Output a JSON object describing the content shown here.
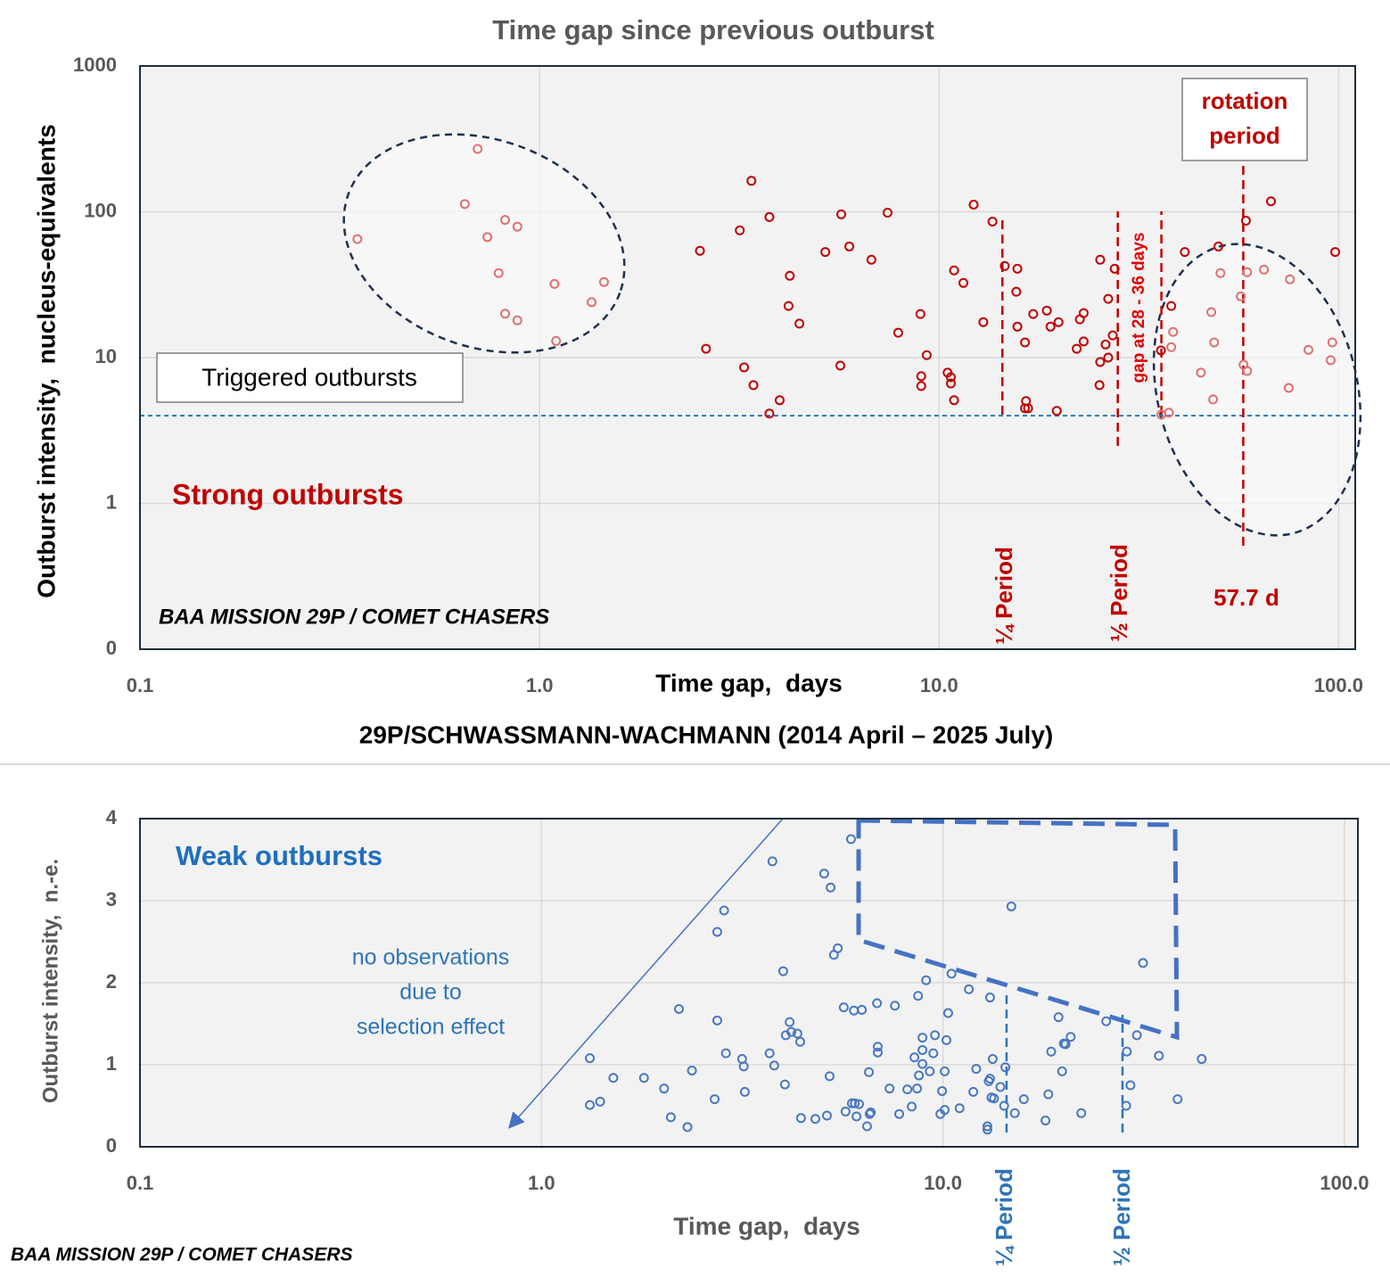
{
  "chart_data": [
    {
      "type": "scatter",
      "title": "Time gap since previous outburst",
      "xlabel": "Time gap,  days",
      "ylabel": "Outburst intensity,  nucleus-equivalents",
      "subtitle": "29P/SCHWASSMANN-WACHMANN (2014 April – 2025 July)",
      "annotations": [
        "Triggered outbursts",
        "Strong outbursts",
        "BAA MISSION 29P / COMET CHASERS",
        "rotation",
        "period",
        "57.7 d",
        "¼ Period",
        "½ Period",
        "gap at 28 - 36 days"
      ],
      "xscale": "log",
      "yscale": "log",
      "xlim": [
        0.1,
        110
      ],
      "ylim": [
        0.1,
        1000
      ],
      "xticks": [
        0.1,
        {
          "value": 1,
          "label": "1.0"
        },
        {
          "value": 10,
          "label": "10.0"
        },
        {
          "value": 100,
          "label": "100.0"
        }
      ],
      "yticks": [
        {
          "value": 0.1,
          "label": "0"
        },
        1,
        10,
        100,
        1000
      ],
      "grid": true,
      "hline": 4,
      "hline_color": "#2e75b6",
      "vlines": [
        14.4,
        28,
        36,
        57.7
      ],
      "vline_color": "#c00000",
      "series": [
        {
          "color": "#e07070",
          "x": [
            0.35,
            0.65,
            0.7,
            0.74,
            0.79,
            0.82,
            0.82,
            0.88,
            0.88,
            1.09,
            1.1,
            1.35,
            1.45,
            36.0,
            37.6,
            38.1,
            38.5,
            45.2,
            48.0,
            48.5,
            48.8,
            50.6,
            56.9,
            57.8,
            59.0,
            59.0,
            65.0,
            75.5,
            75.0,
            84,
            95.5,
            96.4
          ],
          "values": [
            65,
            113,
            270,
            67,
            38,
            88,
            20,
            79,
            18,
            32,
            13,
            24,
            33,
            4.07,
            4.19,
            11.8,
            15.0,
            7.88,
            20.5,
            5.17,
            12.7,
            38,
            26.3,
            8.94,
            8.1,
            38.5,
            40.1,
            34.4,
            6.2,
            11.3,
            9.6,
            12.7
          ]
        },
        {
          "color": "#c00000",
          "x": [
            2.52,
            2.61,
            3.17,
            3.25,
            3.39,
            3.43,
            3.76,
            3.76,
            3.99,
            4.23,
            4.2,
            4.47,
            5.19,
            5.66,
            5.69,
            5.96,
            6.77,
            7.43,
            7.9,
            8.98,
            9.02,
            9.02,
            9.31,
            10.5,
            10.7,
            10.7,
            10.9,
            10.9,
            11.5,
            12.2,
            12.9,
            13.6,
            14.6,
            15.7,
            15.6,
            15.7,
            16.4,
            16.4,
            16.5,
            16.7,
            17.2,
            18.6,
            19.0,
            19.9,
            19.7,
            22.1,
            22.5,
            23.0,
            23.0,
            25.3,
            25.3,
            25.2,
            26.1,
            26.5,
            26.5,
            27.2,
            27.5,
            35.9,
            38.1,
            41.2,
            50,
            58.6,
            67.7,
            98
          ],
          "values": [
            54,
            11.5,
            74.5,
            8.57,
            163,
            6.47,
            92,
            4.13,
            5.1,
            36.4,
            22.6,
            17.1,
            53,
            8.81,
            96,
            57.8,
            46.9,
            98.6,
            14.8,
            19.9,
            7.45,
            6.38,
            10.4,
            7.88,
            6.65,
            7.34,
            5.1,
            39.6,
            32.5,
            112,
            17.5,
            85.7,
            42.5,
            40.7,
            28.3,
            16.3,
            12.7,
            4.49,
            5.03,
            4.49,
            19.9,
            21.0,
            16.3,
            17.5,
            4.31,
            11.5,
            18.3,
            12.9,
            20.2,
            46.9,
            9.33,
            6.47,
            12.3,
            25.3,
            10,
            14.2,
            40.7,
            11.2,
            22.6,
            53,
            57.8,
            86.9,
            118,
            53
          ]
        }
      ]
    },
    {
      "type": "scatter",
      "xlabel": "Time gap,  days",
      "ylabel": "Outburst intensity,  n.-e.",
      "annotations": [
        "Weak outbursts",
        "no observations",
        "due to",
        "selection effect",
        "¼ Period",
        "½ Period",
        "BAA MISSION 29P / COMET CHASERS"
      ],
      "xscale": "log",
      "yscale": "linear",
      "xlim": [
        0.1,
        108
      ],
      "ylim": [
        0,
        4
      ],
      "xticks": [
        0.1,
        {
          "value": 1,
          "label": "1.0"
        },
        {
          "value": 10,
          "label": "10.0"
        },
        {
          "value": 100,
          "label": "100.0"
        }
      ],
      "yticks": [
        0,
        1,
        2,
        3,
        4
      ],
      "grid": true,
      "vlines": [
        14.4,
        28
      ],
      "vline_color": "#2e75b6",
      "series": [
        {
          "color": "#4a78c0",
          "x": [
            1.32,
            1.32,
            1.4,
            1.51,
            1.8,
            2.02,
            2.1,
            2.2,
            2.31,
            2.37,
            2.7,
            2.74,
            2.74,
            2.85,
            2.88,
            3.16,
            3.19,
            3.21,
            3.7,
            3.76,
            3.8,
            4.0,
            4.04,
            4.06,
            4.15,
            4.19,
            4.34,
            4.41,
            4.43,
            4.81,
            5.06,
            5.14,
            5.22,
            5.25,
            5.35,
            5.47,
            5.66,
            5.72,
            5.9,
            5.93,
            6.0,
            6.03,
            6.09,
            6.18,
            6.28,
            6.47,
            6.57,
            6.54,
            6.61,
            6.85,
            6.88,
            6.88,
            7.36,
            7.59,
            7.78,
            8.15,
            8.36,
            8.49,
            8.62,
            8.67,
            8.71,
            8.89,
            8.89,
            8.89,
            9.08,
            9.27,
            9.46,
            9.55,
            9.85,
            9.95,
            10.1,
            10.1,
            10.2,
            10.3,
            10.5,
            11.0,
            11.6,
            11.9,
            12.1,
            12.9,
            12.9,
            13.0,
            13.1,
            13.1,
            13.2,
            13.3,
            13.4,
            13.9,
            14.2,
            14.3,
            14.8,
            15.1,
            15.9,
            18.0,
            18.3,
            18.6,
            19.4,
            19.8,
            20.0,
            20.2,
            20.8,
            22.1,
            25.5,
            28.6,
            28.7,
            29.3,
            30.4,
            31.5,
            34.5,
            38.4,
            44.1
          ],
          "values": [
            1.08,
            0.51,
            0.55,
            0.84,
            0.84,
            0.71,
            0.36,
            1.68,
            0.24,
            0.93,
            0.58,
            2.62,
            1.54,
            2.88,
            1.14,
            1.07,
            0.98,
            0.67,
            1.14,
            3.48,
            0.99,
            2.14,
            0.76,
            1.36,
            1.52,
            1.4,
            1.38,
            1.28,
            0.35,
            0.34,
            3.33,
            0.38,
            0.86,
            3.16,
            2.34,
            2.42,
            1.7,
            0.43,
            3.75,
            0.53,
            1.66,
            0.53,
            0.37,
            0.52,
            1.67,
            0.25,
            0.4,
            0.91,
            0.42,
            1.75,
            1.22,
            1.15,
            0.71,
            1.72,
            0.4,
            0.7,
            0.49,
            1.09,
            0.71,
            1.84,
            0.87,
            1.01,
            1.18,
            1.33,
            2.03,
            0.92,
            1.14,
            1.36,
            0.4,
            0.68,
            0.45,
            0.92,
            1.3,
            1.63,
            2.11,
            0.47,
            1.92,
            0.67,
            0.95,
            0.25,
            0.21,
            0.8,
            0.83,
            1.82,
            0.6,
            1.07,
            0.59,
            0.73,
            0.5,
            0.97,
            2.93,
            0.41,
            0.58,
            0.32,
            0.64,
            1.16,
            1.58,
            0.92,
            1.26,
            1.25,
            1.34,
            0.41,
            1.53,
            0.5,
            1.16,
            0.75,
            1.36,
            2.24,
            1.11,
            0.58,
            1.07
          ]
        }
      ]
    }
  ]
}
